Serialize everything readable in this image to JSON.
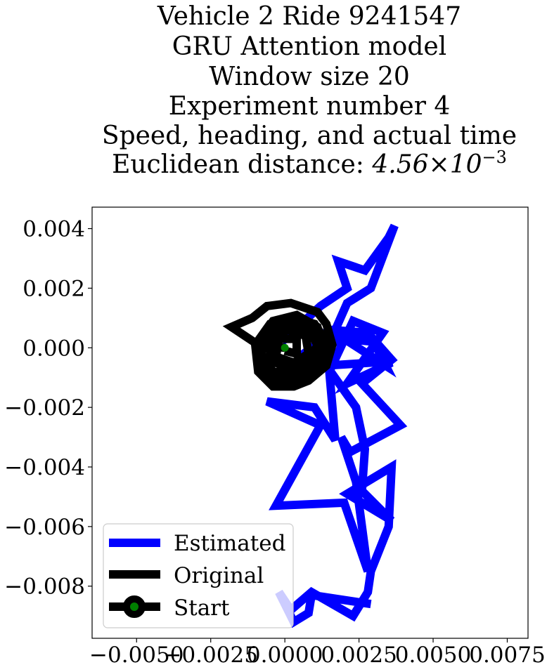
{
  "chart_data": {
    "type": "line",
    "title_lines": [
      "Vehicle 2 Ride 9241547",
      "GRU Attention model",
      "Window size 20",
      "Experiment number 4",
      "Speed, heading, and actual time"
    ],
    "title_metric": {
      "prefix": "Euclidean distance: ",
      "mantissa": "4.56",
      "times": "×",
      "base": "10",
      "exponent": "−3"
    },
    "xlabel": "",
    "ylabel": "",
    "xlim": [
      -0.0065,
      0.0082
    ],
    "ylim": [
      -0.00975,
      0.00472
    ],
    "xticks": [
      -0.005,
      -0.0025,
      0.0,
      0.0025,
      0.005,
      0.0075
    ],
    "xtick_labels": [
      "−0.0050",
      "−0.0025",
      "0.0000",
      "0.0025",
      "0.0050",
      "0.0075"
    ],
    "yticks": [
      0.004,
      0.002,
      0.0,
      -0.002,
      -0.004,
      -0.006,
      -0.008
    ],
    "ytick_labels": [
      "0.004",
      "0.002",
      "0.000",
      "−0.002",
      "−0.004",
      "−0.006",
      "−0.008"
    ],
    "grid": false,
    "legend_position": "lower-left",
    "series": [
      {
        "name": "Estimated",
        "color": "#0000ff",
        "points": [
          [
            0.0029,
            -0.0086
          ],
          [
            0.0009,
            -0.0083
          ],
          [
            0.0008,
            -0.0089
          ],
          [
            0.0003,
            -0.0092
          ],
          [
            -0.0002,
            -0.0082
          ],
          [
            0.0002,
            -0.0088
          ],
          [
            0.0009,
            -0.0082
          ],
          [
            0.0023,
            -0.009
          ],
          [
            0.0028,
            -0.0082
          ],
          [
            0.0029,
            -0.0075
          ],
          [
            0.0035,
            -0.006
          ],
          [
            0.0036,
            -0.004
          ],
          [
            0.0021,
            -0.0049
          ],
          [
            0.0036,
            -0.0058
          ],
          [
            0.0026,
            -0.0048
          ],
          [
            0.0027,
            -0.0034
          ],
          [
            0.0024,
            -0.002
          ],
          [
            0.0014,
            -0.0006
          ],
          [
            0.0029,
            -0.0005
          ],
          [
            0.0036,
            -0.0005
          ],
          [
            0.0021,
            -0.0012
          ],
          [
            0.0033,
            0.0005
          ],
          [
            0.0023,
            0.0009
          ],
          [
            0.0015,
            -0.0008
          ],
          [
            0.0017,
            -0.0031
          ],
          [
            0.001,
            -0.002
          ],
          [
            -0.0006,
            -0.0018
          ],
          [
            0.0012,
            -0.0026
          ],
          [
            -0.0003,
            -0.0053
          ],
          [
            0.002,
            -0.0052
          ],
          [
            0.0028,
            -0.0075
          ],
          [
            0.0024,
            -0.0045
          ],
          [
            0.0019,
            -0.003
          ],
          [
            0.0022,
            -0.0035
          ],
          [
            0.0039,
            -0.0026
          ],
          [
            0.0026,
            -0.0012
          ],
          [
            0.0036,
            -0.0004
          ],
          [
            0.0028,
            0.0005
          ],
          [
            0.0016,
            0.0006
          ],
          [
            0.0011,
            0.0004
          ],
          [
            0.003,
            0.0002
          ],
          [
            0.0034,
            -0.0006
          ],
          [
            0.002,
            0.0003
          ],
          [
            0.0005,
            -0.0003
          ],
          [
            0.0017,
            0.0006
          ],
          [
            0.0021,
            0.0015
          ],
          [
            0.0029,
            0.002
          ],
          [
            0.0037,
            0.0041
          ],
          [
            0.0035,
            0.0037
          ],
          [
            0.0027,
            0.0026
          ],
          [
            0.0018,
            0.0029
          ],
          [
            0.0021,
            0.002
          ],
          [
            0.0012,
            0.0014
          ],
          [
            -0.0001,
            0.0002
          ]
        ]
      },
      {
        "name": "Original",
        "color": "#000000",
        "points": [
          [
            0.0,
            0.0
          ],
          [
            -0.0009,
            0.0001
          ],
          [
            -0.0018,
            0.0007
          ],
          [
            -0.0011,
            0.001
          ],
          [
            -0.0006,
            0.0014
          ],
          [
            0.0002,
            0.0015
          ],
          [
            0.0011,
            0.0012
          ],
          [
            0.0014,
            0.0008
          ],
          [
            0.0016,
            0.0001
          ],
          [
            0.0014,
            -0.0006
          ],
          [
            0.0008,
            -0.0011
          ],
          [
            0.0003,
            -0.0013
          ],
          [
            -0.0004,
            -0.0013
          ],
          [
            -0.0009,
            -0.0008
          ],
          [
            -0.001,
            0.0001
          ],
          [
            -0.0005,
            0.0008
          ],
          [
            0.0003,
            0.001
          ],
          [
            0.001,
            0.0008
          ],
          [
            0.0014,
            0.0002
          ],
          [
            0.0012,
            -0.0005
          ],
          [
            0.0006,
            -0.001
          ],
          [
            -0.0002,
            -0.0011
          ],
          [
            -0.0008,
            -0.0006
          ],
          [
            -0.0009,
            0.0002
          ],
          [
            -0.0004,
            0.0009
          ],
          [
            0.0004,
            0.0011
          ],
          [
            0.0011,
            0.0007
          ],
          [
            0.0013,
            0.0
          ],
          [
            0.001,
            -0.0007
          ],
          [
            0.0003,
            -0.0009
          ],
          [
            -0.0004,
            -0.0008
          ],
          [
            -0.0008,
            -0.0002
          ],
          [
            -0.0006,
            0.0005
          ],
          [
            0.0001,
            0.0008
          ],
          [
            0.0008,
            0.0006
          ],
          [
            0.0011,
            0.0001
          ],
          [
            0.0008,
            -0.0005
          ],
          [
            0.0001,
            -0.0007
          ],
          [
            -0.0005,
            -0.0004
          ],
          [
            -0.0005,
            0.0003
          ],
          [
            0.0001,
            0.0006
          ],
          [
            0.0007,
            0.0004
          ],
          [
            0.0008,
            -0.0002
          ],
          [
            0.0003,
            -0.0005
          ],
          [
            -0.0003,
            -0.0003
          ],
          [
            -0.0002,
            0.0003
          ],
          [
            0.0004,
            0.0003
          ],
          [
            0.0004,
            -0.0002
          ],
          [
            0.0,
            -0.0001
          ]
        ]
      }
    ],
    "start_point": {
      "name": "Start",
      "x": 0.0,
      "y": 0.0,
      "color": "#008000"
    }
  }
}
